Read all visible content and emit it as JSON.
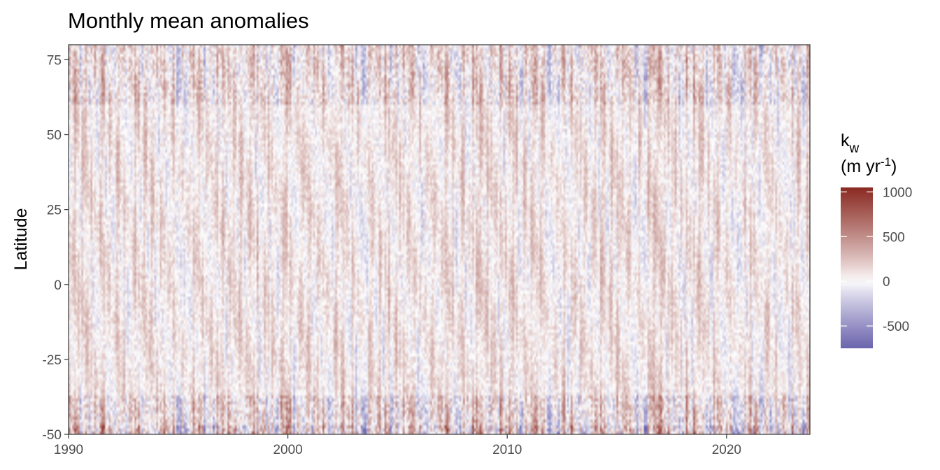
{
  "chart_data": {
    "type": "heatmap",
    "title": "Monthly mean anomalies",
    "xlabel": "",
    "ylabel": "Latitude",
    "x_ticks": [
      1990,
      2000,
      2010,
      2020
    ],
    "y_ticks": [
      -50,
      -25,
      0,
      25,
      50,
      75
    ],
    "x_tick_labels": [
      "1990",
      "2000",
      "2010",
      "2020"
    ],
    "y_tick_labels": [
      "-50",
      "-25",
      "0",
      "25",
      "50",
      "75"
    ],
    "xlim": [
      1990,
      2023.8
    ],
    "ylim": [
      -50,
      80
    ],
    "time_resolution": "monthly",
    "latitude_band_edges": [
      -50,
      -47,
      -37,
      80
    ],
    "legend": {
      "title_main": "k",
      "title_sub": "w",
      "unit_prefix": "(m yr",
      "unit_sup": "-1",
      "unit_suffix": ")",
      "ticks": [
        1000,
        500,
        0,
        -500
      ],
      "tick_labels": [
        "1000",
        "500",
        "0",
        "-500"
      ],
      "range": [
        -750,
        1050
      ],
      "placement": "right"
    },
    "colors": {
      "negative": "#6b64ad",
      "midpoint": "#ffffff",
      "positive": "#8a2a22"
    },
    "grid": false
  }
}
